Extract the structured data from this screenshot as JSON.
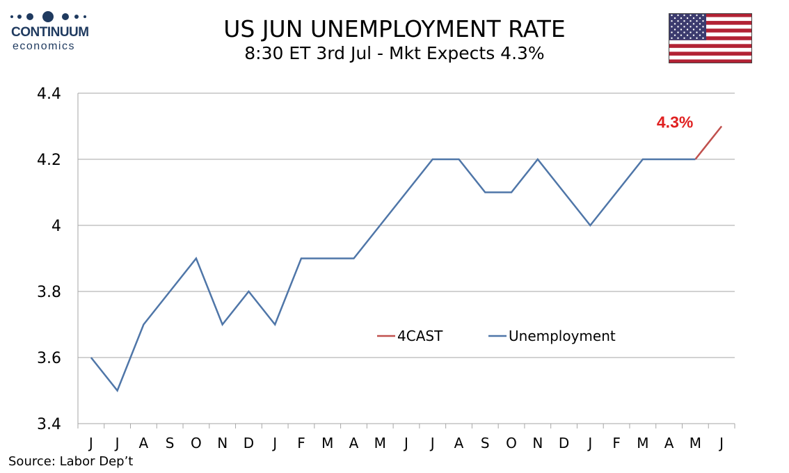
{
  "header": {
    "logo_name": "CONTINUUM",
    "logo_sub": "economics",
    "title": "US JUN UNEMPLOYMENT RATE",
    "subtitle": "8:30 ET 3rd Jul - Mkt Expects 4.3%"
  },
  "footer": {
    "source": "Source: Labor Dep’t"
  },
  "colors": {
    "unemployment": "#4f76a8",
    "forecast": "#c0504d",
    "annotation": "#e02020",
    "grid": "#a6a6a6",
    "logo": "#1f3a5f"
  },
  "flag_icon": "us-flag-icon",
  "chart_data": {
    "type": "line",
    "title": "US JUN UNEMPLOYMENT RATE",
    "categories": [
      "J",
      "J",
      "A",
      "S",
      "O",
      "N",
      "D",
      "J",
      "F",
      "M",
      "A",
      "M",
      "J",
      "J",
      "A",
      "S",
      "O",
      "N",
      "D",
      "J",
      "F",
      "M",
      "A",
      "M",
      "J"
    ],
    "ylim": [
      3.4,
      4.4
    ],
    "yticks": [
      3.4,
      3.6,
      3.8,
      4,
      4.2,
      4.4
    ],
    "ytick_labels": [
      "3.4",
      "3.6",
      "3.8",
      "4",
      "4.2",
      "4.4"
    ],
    "grid": "horizontal",
    "legend_position": "center-right",
    "series": [
      {
        "name": "4CAST",
        "color": "#c0504d",
        "values": [
          null,
          null,
          null,
          null,
          null,
          null,
          null,
          null,
          null,
          null,
          null,
          null,
          null,
          null,
          null,
          null,
          null,
          null,
          null,
          null,
          null,
          null,
          null,
          4.2,
          4.3
        ]
      },
      {
        "name": "Unemployment",
        "color": "#4f76a8",
        "values": [
          3.6,
          3.5,
          3.7,
          3.8,
          3.9,
          3.7,
          3.8,
          3.7,
          3.9,
          3.9,
          3.9,
          4.0,
          4.1,
          4.2,
          4.2,
          4.1,
          4.1,
          4.2,
          4.1,
          4.0,
          4.1,
          4.2,
          4.2,
          4.2,
          null
        ]
      }
    ],
    "annotation": {
      "text": "4.3%",
      "x_index": 24,
      "value": 4.3
    }
  }
}
